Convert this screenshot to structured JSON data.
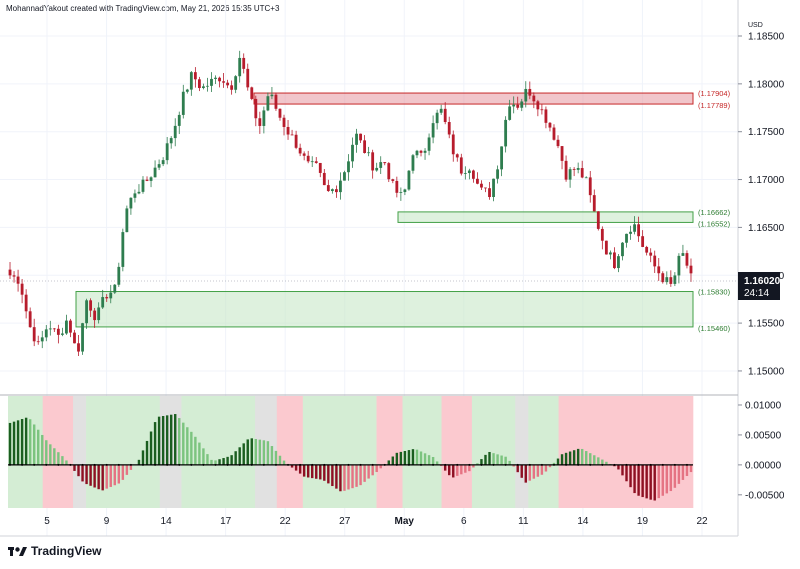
{
  "header": {
    "credit": "MohannadYakout created with TradingView.com, May 21, 2026 15:35 UTC+3"
  },
  "footer": {
    "brand": "TradingView",
    "logo_icon": "tradingview-logo-icon"
  },
  "currency": "USD",
  "current_price": {
    "value": 1.1602,
    "label": "1.16020",
    "countdown": "24:14"
  },
  "colors": {
    "up": "#2e7d4f",
    "down": "#b71c2c",
    "hist_up": "#1b5e20",
    "hist_up_fade": "#7cc47f",
    "hist_down": "#8e0f22",
    "hist_down_fade": "#e57383",
    "bg_green": "#d4edd4",
    "bg_red": "#fbc9cf",
    "bg_grey": "#e1e1e1",
    "res_zone": "#e8a0a8",
    "sup_zone": "#c8e8c8",
    "price_tag": "#131722"
  },
  "chart_data": {
    "type": "candlestick",
    "title": "",
    "y_axis": {
      "ticks": [
        1.15,
        1.155,
        1.16,
        1.165,
        1.17,
        1.175,
        1.18,
        1.185
      ],
      "labels": [
        "1.15000",
        "1.15500",
        "1.16000",
        "1.16500",
        "1.17000",
        "1.17500",
        "1.18000",
        "1.18500"
      ],
      "range": [
        1.1478,
        1.1873
      ]
    },
    "x_axis": {
      "labels": [
        "5",
        "9",
        "14",
        "17",
        "22",
        "27",
        "May",
        "6",
        "11",
        "14",
        "19",
        "22"
      ]
    },
    "candle_path": [
      1.16,
      1.1595,
      1.1548,
      1.1525,
      1.155,
      1.1535,
      1.1555,
      1.1516,
      1.1575,
      1.1555,
      1.158,
      1.1585,
      1.1665,
      1.1688,
      1.1695,
      1.171,
      1.1725,
      1.175,
      1.1785,
      1.181,
      1.1795,
      1.1802,
      1.1808,
      1.1795,
      1.183,
      1.1785,
      1.1755,
      1.1792,
      1.1768,
      1.175,
      1.1735,
      1.1715,
      1.1712,
      1.1685,
      1.1692,
      1.1712,
      1.1748,
      1.173,
      1.1712,
      1.172,
      1.169,
      1.168,
      1.173,
      1.1722,
      1.1762,
      1.1772,
      1.1735,
      1.171,
      1.1715,
      1.1688,
      1.1686,
      1.1722,
      1.1782,
      1.1778,
      1.1795,
      1.178,
      1.1762,
      1.174,
      1.1705,
      1.1712,
      1.17,
      1.1662,
      1.163,
      1.1612,
      1.1642,
      1.1655,
      1.163,
      1.1612,
      1.1598,
      1.1588,
      1.1625,
      1.16
    ],
    "zones": [
      {
        "kind": "resistance",
        "top": 1.17904,
        "bottom": 1.17789,
        "top_label": "(1.17904)",
        "bottom_label": "(1.17789)"
      },
      {
        "kind": "mid",
        "top": 1.16662,
        "bottom": 1.16552,
        "top_label": "(1.16662)",
        "bottom_label": "(1.16552)"
      },
      {
        "kind": "support",
        "top": 1.1583,
        "bottom": 1.1546,
        "top_label": "(1.15830)",
        "bottom_label": "(1.15460)"
      }
    ],
    "oscillator": {
      "y_ticks": [
        0.01,
        0.005,
        0,
        -0.005
      ],
      "y_labels": [
        "0.01000",
        "0.00500",
        "0.00000",
        "-0.00500"
      ],
      "range": [
        -0.0072,
        0.0115
      ],
      "bands": [
        "green",
        "red",
        "grey",
        "green",
        "grey",
        "green",
        "grey",
        "red",
        "green",
        "red",
        "green",
        "red",
        "green",
        "grey",
        "green",
        "red"
      ],
      "band_weights": [
        8,
        7,
        3,
        17,
        5,
        17,
        5,
        6,
        17,
        6,
        9,
        7,
        10,
        3,
        7,
        31
      ],
      "keypoints": [
        0.007,
        0.008,
        0.004,
        0.001,
        -0.003,
        -0.0043,
        -0.003,
        0.0008,
        0.008,
        0.0085,
        0.005,
        0.0006,
        0.0015,
        0.0045,
        0.004,
        0.0003,
        -0.002,
        -0.0025,
        -0.0045,
        -0.0035,
        -0.001,
        0.002,
        0.0027,
        0.0013,
        -0.0022,
        -0.001,
        0.0022,
        0.0013,
        -0.003,
        -0.0015,
        0.0018,
        0.0028,
        0.0012,
        -0.0005,
        -0.005,
        -0.006,
        -0.0042,
        -0.0012
      ]
    }
  }
}
